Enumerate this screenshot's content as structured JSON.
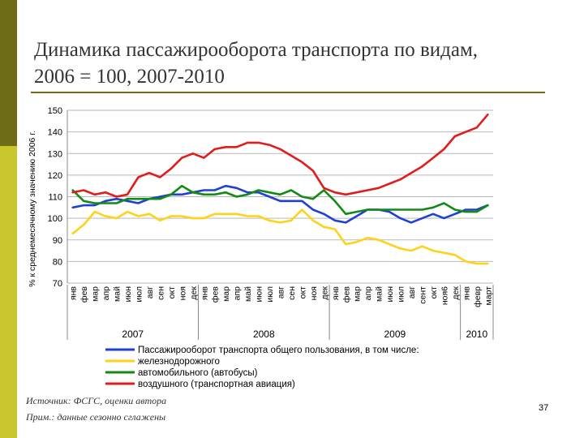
{
  "slide": {
    "title_line1": "Динамика пассажирооборота транспорта по видам,",
    "title_line2": "2006 = 100, 2007-2010",
    "source": "Источник: ФСГС, оценки автора",
    "note": "Прим.: данные сезонно сглажены",
    "page_number": "37"
  },
  "colors": {
    "sidebar_dark": "#6e6c14",
    "sidebar_light": "#c9c62d"
  },
  "chart_data": {
    "type": "line",
    "ylabel": "% к среднемесячному значению 2006 г.",
    "ylim": [
      70,
      150
    ],
    "yticks": [
      70,
      80,
      90,
      100,
      110,
      120,
      130,
      140,
      150
    ],
    "grid": true,
    "legend_position": "bottom",
    "legend_title": "Пассажирооборот транспорта общего пользования,  в том числе:",
    "x": [
      "янв",
      "фев",
      "мар",
      "апр",
      "май",
      "июн",
      "июл",
      "авг",
      "сен",
      "окт",
      "ноя",
      "дек",
      "янв",
      "фев",
      "мар",
      "апр",
      "май",
      "июн",
      "июл",
      "авг",
      "сен",
      "окт",
      "ноя",
      "дек",
      "янв",
      "фев",
      "мар",
      "апр",
      "май",
      "июн",
      "июл",
      "авг",
      "сент",
      "окт",
      "ноя6",
      "дек",
      "янв",
      "февр",
      "март"
    ],
    "years": [
      {
        "label": "2007",
        "start": 0,
        "end": 11
      },
      {
        "label": "2008",
        "start": 12,
        "end": 23
      },
      {
        "label": "2009",
        "start": 24,
        "end": 35
      },
      {
        "label": "2010",
        "start": 36,
        "end": 38
      }
    ],
    "series": [
      {
        "name": "Пассажирооборот транспорта общего пользования,  в том числе:",
        "color": "#1f3fd6",
        "values": [
          105,
          106,
          106,
          108,
          109,
          108,
          107,
          109,
          110,
          111,
          111,
          112,
          113,
          113,
          115,
          114,
          112,
          112,
          110,
          108,
          108,
          108,
          104,
          102,
          99,
          98,
          101,
          104,
          104,
          103,
          100,
          98,
          100,
          102,
          100,
          102,
          104,
          104,
          106
        ]
      },
      {
        "name": "железнодорожного",
        "color": "#ffd21a",
        "values": [
          93,
          97,
          103,
          101,
          100,
          103,
          101,
          102,
          99,
          101,
          101,
          100,
          100,
          102,
          102,
          102,
          101,
          101,
          99,
          98,
          99,
          104,
          99,
          96,
          95,
          88,
          89,
          91,
          90,
          88,
          86,
          85,
          87,
          85,
          84,
          83,
          80,
          79,
          79
        ]
      },
      {
        "name": "автомобильного (автобусы)",
        "color": "#138a13",
        "values": [
          113,
          108,
          107,
          107,
          107,
          109,
          109,
          109,
          109,
          111,
          115,
          112,
          111,
          111,
          112,
          110,
          111,
          113,
          112,
          111,
          113,
          110,
          109,
          113,
          108,
          102,
          103,
          104,
          104,
          104,
          104,
          104,
          104,
          105,
          107,
          104,
          103,
          103,
          106
        ]
      },
      {
        "name": "воздушного (транспортная авиация)",
        "color": "#e01c1c",
        "values": [
          112,
          113,
          111,
          112,
          110,
          111,
          119,
          121,
          119,
          123,
          128,
          130,
          128,
          132,
          133,
          133,
          135,
          135,
          134,
          132,
          129,
          126,
          122,
          114,
          112,
          111,
          112,
          113,
          114,
          116,
          118,
          121,
          124,
          128,
          132,
          138,
          140,
          142,
          148
        ]
      }
    ]
  }
}
